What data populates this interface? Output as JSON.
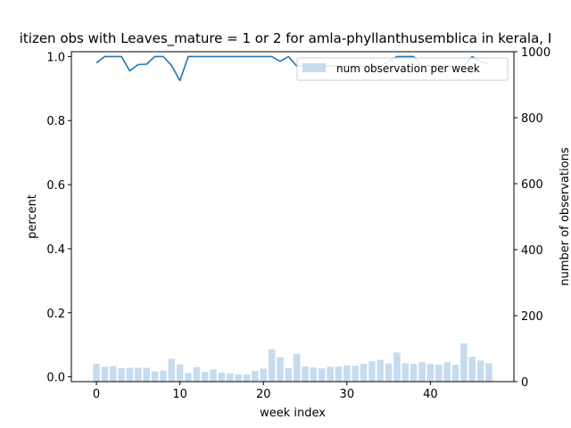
{
  "chart_data": {
    "type": "bar+line",
    "title": "itizen obs with Leaves_mature = 1 or 2 for amla-phyllanthusemblica in kerala, I",
    "xlabel": "week index",
    "ylabel_left": "percent",
    "ylabel_right": "number of observations",
    "xlim": [
      -3,
      50
    ],
    "ylim_left": [
      -0.015,
      1.015
    ],
    "ylim_right": [
      0,
      1000
    ],
    "x_ticks": [
      0,
      10,
      20,
      30,
      40
    ],
    "y_ticks_left": [
      0.0,
      0.2,
      0.4,
      0.6,
      0.8,
      1.0
    ],
    "y_ticks_right": [
      0,
      200,
      400,
      600,
      800,
      1000
    ],
    "x_tick_labels": [
      "0",
      "10",
      "20",
      "30",
      "40"
    ],
    "y_tick_labels_left": [
      "0.0",
      "0.2",
      "0.4",
      "0.6",
      "0.8",
      "1.0"
    ],
    "y_tick_labels_right": [
      "0",
      "200",
      "400",
      "600",
      "800",
      "1000"
    ],
    "legend_label": "num observation per week",
    "legend_position": "top-right",
    "line_color": "#1f77b4",
    "bar_color": "#c6dbef",
    "weeks": [
      0,
      1,
      2,
      3,
      4,
      5,
      6,
      7,
      8,
      9,
      10,
      11,
      12,
      13,
      14,
      15,
      16,
      17,
      18,
      19,
      20,
      21,
      22,
      23,
      24,
      25,
      26,
      27,
      28,
      29,
      30,
      31,
      32,
      33,
      34,
      35,
      36,
      37,
      38,
      39,
      40,
      41,
      42,
      43,
      44,
      45,
      46,
      47
    ],
    "observations": [
      54,
      45,
      47,
      41,
      42,
      42,
      42,
      31,
      33,
      69,
      52,
      26,
      44,
      29,
      37,
      28,
      25,
      22,
      22,
      32,
      39,
      98,
      74,
      41,
      84,
      46,
      43,
      40,
      45,
      46,
      49,
      48,
      54,
      62,
      66,
      55,
      88,
      56,
      54,
      59,
      54,
      52,
      59,
      51,
      116,
      75,
      64,
      56
    ],
    "percent": [
      0.98,
      1.0,
      1.0,
      1.0,
      0.955,
      0.975,
      0.976,
      1.0,
      1.0,
      0.972,
      0.925,
      1.0,
      1.0,
      1.0,
      1.0,
      1.0,
      1.0,
      1.0,
      1.0,
      1.0,
      1.0,
      1.0,
      0.985,
      1.0,
      0.97,
      0.97,
      0.97,
      0.97,
      0.97,
      0.97,
      0.97,
      0.97,
      0.97,
      0.97,
      0.97,
      0.985,
      1.0,
      1.0,
      1.0,
      0.97,
      0.97,
      0.97,
      0.97,
      0.97,
      0.97,
      1.0,
      0.985,
      0.975
    ]
  }
}
